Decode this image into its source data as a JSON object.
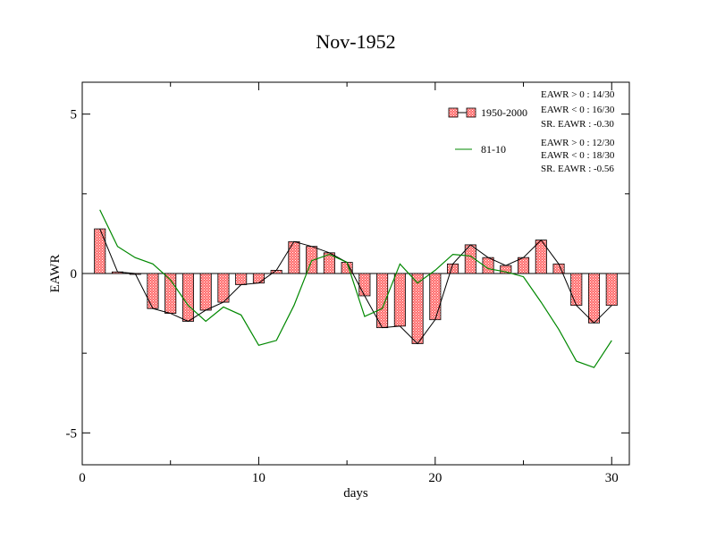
{
  "chart_data": {
    "type": "bar",
    "title": "Nov-1952",
    "xlabel": "days",
    "ylabel": "EAWR",
    "xlim": [
      0,
      31
    ],
    "ylim": [
      -6,
      6
    ],
    "xticks": [
      0,
      10,
      20,
      30
    ],
    "yticks": [
      -5,
      0,
      5
    ],
    "ytick_labels": [
      "-5",
      "0",
      "5"
    ],
    "grid": false,
    "legend_position": "top-right",
    "x": [
      1,
      2,
      3,
      4,
      5,
      6,
      7,
      8,
      9,
      10,
      11,
      12,
      13,
      14,
      15,
      16,
      17,
      18,
      19,
      20,
      21,
      22,
      23,
      24,
      25,
      26,
      27,
      28,
      29,
      30
    ],
    "series": [
      {
        "name": "1950-2000",
        "kind": "bar",
        "color": "#ff6b6b",
        "values": [
          1.4,
          0.05,
          0.0,
          -1.1,
          -1.25,
          -1.5,
          -1.15,
          -0.9,
          -0.35,
          -0.3,
          0.1,
          1.0,
          0.85,
          0.65,
          0.35,
          -0.7,
          -1.7,
          -1.65,
          -2.2,
          -1.45,
          0.3,
          0.9,
          0.5,
          0.25,
          0.5,
          1.05,
          0.3,
          -1.0,
          -1.55,
          -1.0
        ]
      },
      {
        "name": "81-10",
        "kind": "line",
        "color": "#008800",
        "values": [
          2.0,
          0.85,
          0.5,
          0.3,
          -0.2,
          -1.0,
          -1.5,
          -1.05,
          -1.3,
          -2.25,
          -2.1,
          -1.0,
          0.4,
          0.6,
          0.35,
          -1.35,
          -1.1,
          0.3,
          -0.3,
          0.1,
          0.6,
          0.55,
          0.15,
          0.05,
          -0.1,
          -0.9,
          -1.75,
          -2.75,
          -2.95,
          -2.1
        ]
      }
    ],
    "annotations": {
      "group1": [
        "EAWR > 0 : 14/30",
        "EAWR < 0 : 16/30",
        "SR. EAWR : -0.30"
      ],
      "group2": [
        "EAWR > 0 : 12/30",
        "EAWR < 0 : 18/30",
        "SR. EAWR : -0.56"
      ]
    }
  }
}
